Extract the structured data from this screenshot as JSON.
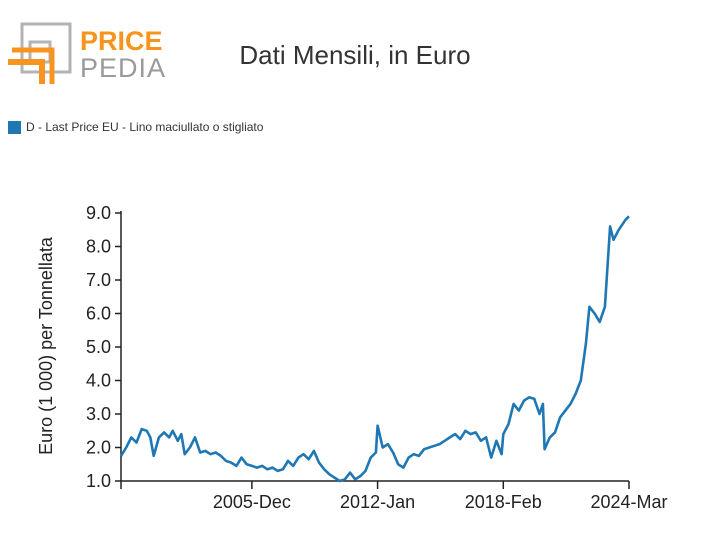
{
  "brand": {
    "line1": "PRICE",
    "line2": "PEDIA",
    "orange": "#f7941d",
    "gray": "#9a9a9a"
  },
  "title": "Dati Mensili, in Euro",
  "chart_data": {
    "type": "line",
    "title": "Dati Mensili, in Euro",
    "ylabel": "Euro (1 000) per Tonnellata",
    "xlabel": "",
    "ylim": [
      1.0,
      9.0
    ],
    "yticks": [
      "1.0",
      "2.0",
      "3.0",
      "4.0",
      "5.0",
      "6.0",
      "7.0",
      "8.0",
      "9.0"
    ],
    "xtick_labels": [
      "2005-Dec",
      "2012-Jan",
      "2018-Feb",
      "2024-Mar"
    ],
    "xtick_positions": [
      "2005-12",
      "2012-01",
      "2018-02",
      "2024-03"
    ],
    "x_start": "1999-08",
    "x_end": "2024-03",
    "legend_position": "top-left",
    "grid": false,
    "series": [
      {
        "name": "D - Last Price EU - Lino maciullato o stigliato",
        "color": "#1f77b4",
        "points": [
          [
            "1999-08",
            1.75
          ],
          [
            "1999-11",
            2.0
          ],
          [
            "2000-02",
            2.3
          ],
          [
            "2000-05",
            2.15
          ],
          [
            "2000-08",
            2.55
          ],
          [
            "2000-11",
            2.5
          ],
          [
            "2001-01",
            2.3
          ],
          [
            "2001-03",
            1.75
          ],
          [
            "2001-06",
            2.3
          ],
          [
            "2001-09",
            2.45
          ],
          [
            "2001-12",
            2.3
          ],
          [
            "2002-02",
            2.5
          ],
          [
            "2002-05",
            2.2
          ],
          [
            "2002-07",
            2.4
          ],
          [
            "2002-09",
            1.8
          ],
          [
            "2002-12",
            2.0
          ],
          [
            "2003-03",
            2.3
          ],
          [
            "2003-06",
            1.85
          ],
          [
            "2003-09",
            1.9
          ],
          [
            "2003-12",
            1.8
          ],
          [
            "2004-03",
            1.85
          ],
          [
            "2004-06",
            1.75
          ],
          [
            "2004-09",
            1.6
          ],
          [
            "2004-12",
            1.55
          ],
          [
            "2005-03",
            1.45
          ],
          [
            "2005-06",
            1.7
          ],
          [
            "2005-09",
            1.5
          ],
          [
            "2005-12",
            1.45
          ],
          [
            "2006-03",
            1.4
          ],
          [
            "2006-06",
            1.45
          ],
          [
            "2006-09",
            1.35
          ],
          [
            "2006-12",
            1.4
          ],
          [
            "2007-03",
            1.3
          ],
          [
            "2007-06",
            1.35
          ],
          [
            "2007-09",
            1.6
          ],
          [
            "2007-12",
            1.45
          ],
          [
            "2008-03",
            1.7
          ],
          [
            "2008-06",
            1.8
          ],
          [
            "2008-09",
            1.65
          ],
          [
            "2008-12",
            1.9
          ],
          [
            "2009-03",
            1.55
          ],
          [
            "2009-06",
            1.35
          ],
          [
            "2009-09",
            1.2
          ],
          [
            "2009-12",
            1.1
          ],
          [
            "2010-03",
            1.0
          ],
          [
            "2010-06",
            1.05
          ],
          [
            "2010-09",
            1.25
          ],
          [
            "2010-12",
            1.05
          ],
          [
            "2011-03",
            1.15
          ],
          [
            "2011-06",
            1.3
          ],
          [
            "2011-09",
            1.7
          ],
          [
            "2011-12",
            1.85
          ],
          [
            "2012-01",
            2.65
          ],
          [
            "2012-04",
            2.0
          ],
          [
            "2012-07",
            2.1
          ],
          [
            "2012-10",
            1.85
          ],
          [
            "2013-01",
            1.5
          ],
          [
            "2013-04",
            1.4
          ],
          [
            "2013-07",
            1.7
          ],
          [
            "2013-10",
            1.8
          ],
          [
            "2014-01",
            1.75
          ],
          [
            "2014-04",
            1.95
          ],
          [
            "2014-07",
            2.0
          ],
          [
            "2014-10",
            2.05
          ],
          [
            "2015-01",
            2.1
          ],
          [
            "2015-04",
            2.2
          ],
          [
            "2015-07",
            2.3
          ],
          [
            "2015-10",
            2.4
          ],
          [
            "2016-01",
            2.25
          ],
          [
            "2016-04",
            2.5
          ],
          [
            "2016-07",
            2.4
          ],
          [
            "2016-10",
            2.45
          ],
          [
            "2017-01",
            2.2
          ],
          [
            "2017-04",
            2.3
          ],
          [
            "2017-07",
            1.7
          ],
          [
            "2017-10",
            2.2
          ],
          [
            "2018-01",
            1.8
          ],
          [
            "2018-02",
            2.4
          ],
          [
            "2018-05",
            2.7
          ],
          [
            "2018-08",
            3.3
          ],
          [
            "2018-11",
            3.1
          ],
          [
            "2019-02",
            3.4
          ],
          [
            "2019-05",
            3.5
          ],
          [
            "2019-08",
            3.45
          ],
          [
            "2019-11",
            3.0
          ],
          [
            "2020-01",
            3.3
          ],
          [
            "2020-02",
            1.95
          ],
          [
            "2020-05",
            2.3
          ],
          [
            "2020-08",
            2.45
          ],
          [
            "2020-11",
            2.9
          ],
          [
            "2021-02",
            3.1
          ],
          [
            "2021-05",
            3.3
          ],
          [
            "2021-08",
            3.6
          ],
          [
            "2021-11",
            4.0
          ],
          [
            "2022-02",
            5.1
          ],
          [
            "2022-04",
            6.2
          ],
          [
            "2022-07",
            6.0
          ],
          [
            "2022-10",
            5.75
          ],
          [
            "2023-01",
            6.2
          ],
          [
            "2023-04",
            8.6
          ],
          [
            "2023-06",
            8.2
          ],
          [
            "2023-09",
            8.5
          ],
          [
            "2024-01",
            8.8
          ],
          [
            "2024-03",
            8.9
          ]
        ]
      }
    ]
  }
}
